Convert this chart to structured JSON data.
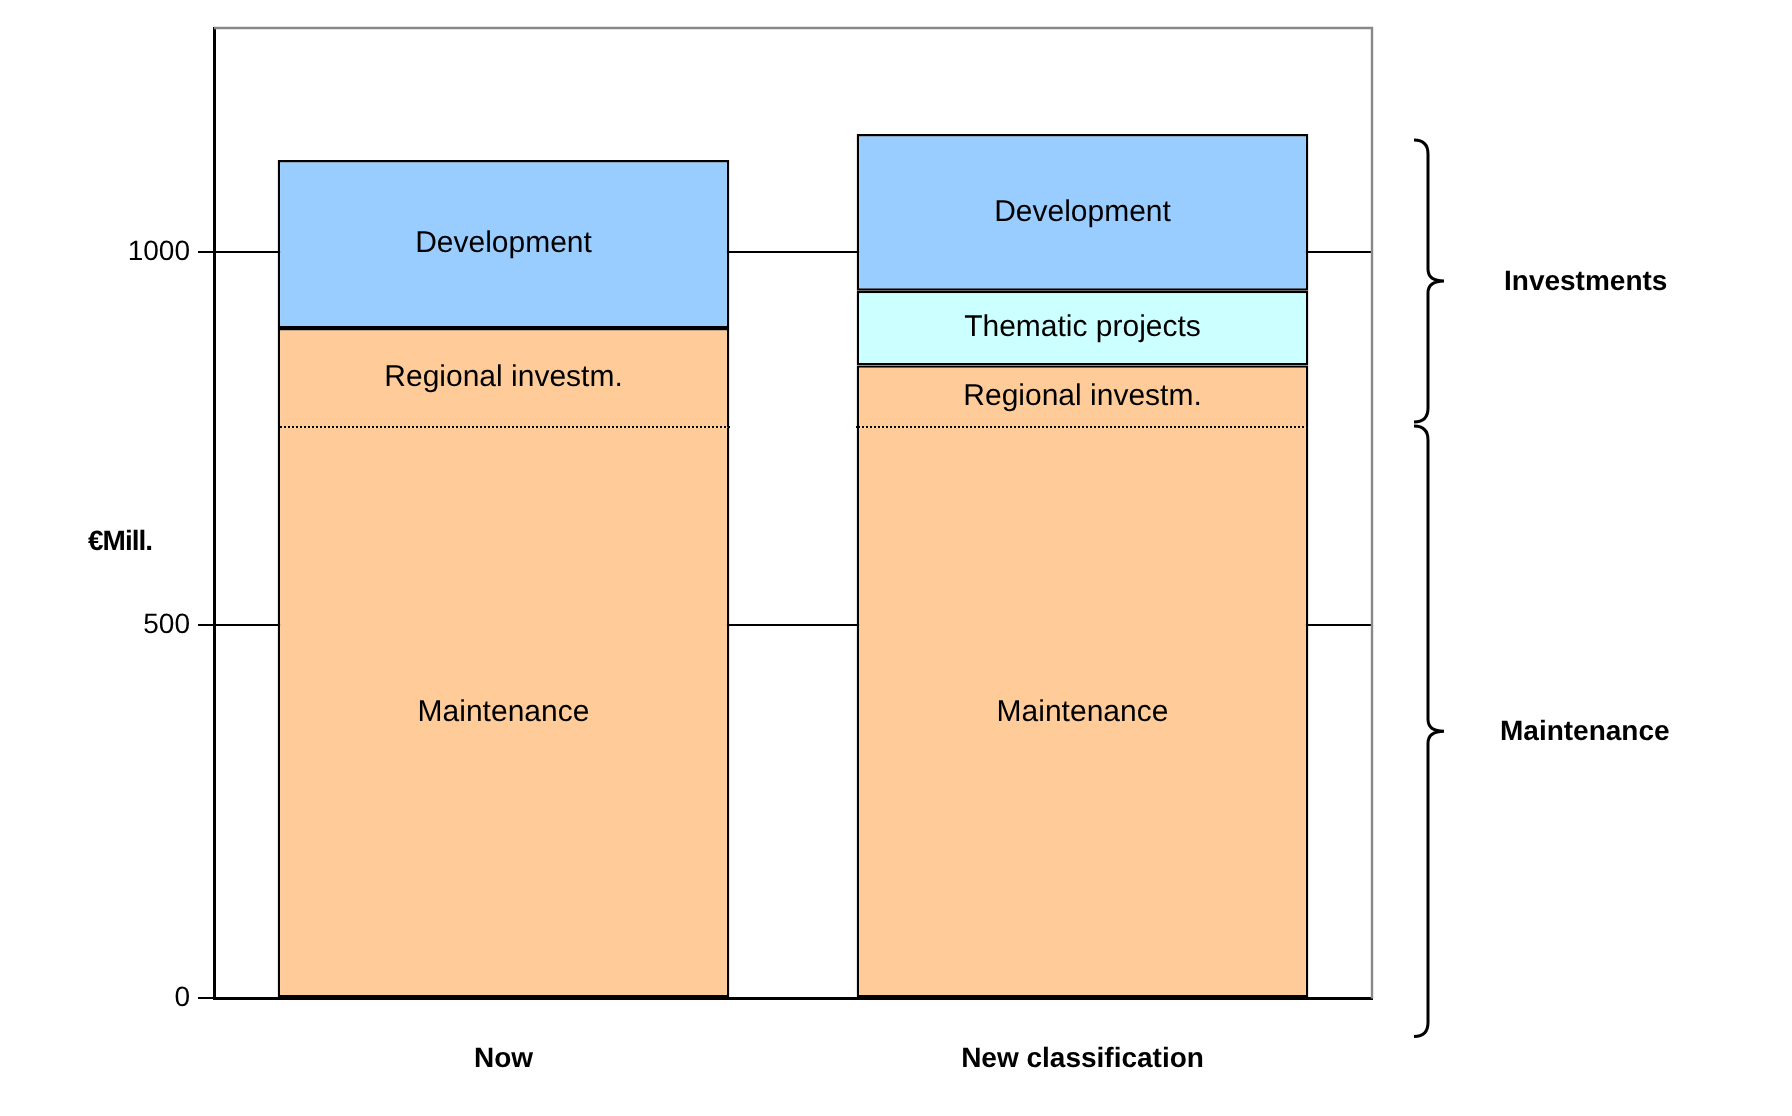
{
  "chart_data": {
    "type": "bar",
    "stacked": true,
    "ylabel": "€Mill.",
    "categories": [
      "Now",
      "New classification"
    ],
    "series": [
      {
        "name": "Maintenance",
        "color": "#ffcc99",
        "values": [
          765,
          765
        ]
      },
      {
        "name": "Regional investm.",
        "color": "#ffcc99",
        "values": [
          133,
          83
        ]
      },
      {
        "name": "Thematic projects",
        "color": "#ccffff",
        "values": [
          null,
          100
        ]
      },
      {
        "name": "Development",
        "color": "#99ccff",
        "values": [
          225,
          210
        ]
      }
    ],
    "ylim": [
      0,
      1300
    ],
    "yticks": [
      0,
      500,
      1000
    ],
    "grid": "y",
    "legend": false,
    "annotations": [
      "Investments",
      "Maintenance"
    ]
  }
}
